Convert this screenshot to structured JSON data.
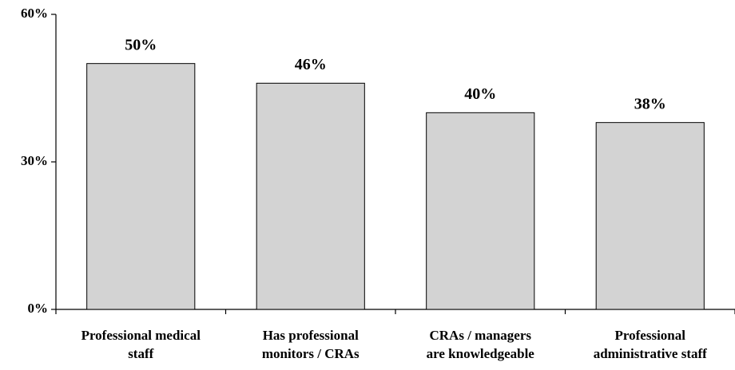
{
  "chart_data": {
    "type": "bar",
    "categories": [
      [
        "Professional medical",
        "staff"
      ],
      [
        "Has professional",
        "monitors / CRAs"
      ],
      [
        "CRAs / managers",
        "are knowledgeable"
      ],
      [
        "Professional",
        "administrative staff"
      ]
    ],
    "values": [
      50,
      46,
      40,
      38
    ],
    "value_labels": [
      "50%",
      "46%",
      "40%",
      "38%"
    ],
    "color": "#d3d3d3",
    "ylim": [
      0,
      60
    ],
    "yticks": [
      {
        "value": 0,
        "label": "0%"
      },
      {
        "value": 30,
        "label": "30%"
      },
      {
        "value": 60,
        "label": "60%"
      }
    ],
    "grid": false
  }
}
